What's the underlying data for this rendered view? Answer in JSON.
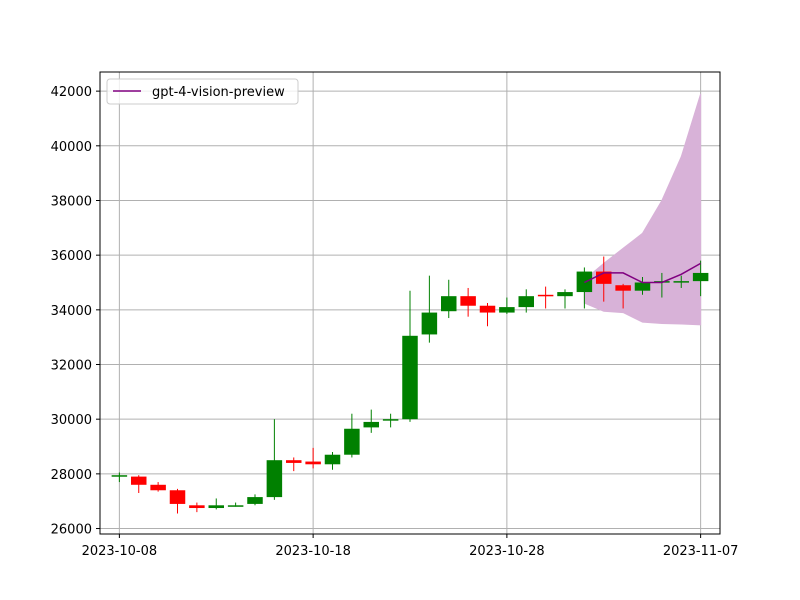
{
  "chart_data": {
    "type": "candlestick",
    "title": "",
    "xlabel": "",
    "ylabel": "",
    "grid": true,
    "legend_position": "top-left",
    "xlim": [
      "2023-10-07",
      "2023-11-08"
    ],
    "ylim": [
      25800,
      42700
    ],
    "x_ticks": [
      "2023-10-08",
      "2023-10-18",
      "2023-10-28",
      "2023-11-07"
    ],
    "y_ticks": [
      26000,
      28000,
      30000,
      32000,
      34000,
      36000,
      38000,
      40000,
      42000
    ],
    "colors": {
      "up": "#008000",
      "down": "#ff0000",
      "prediction_line": "#800080",
      "prediction_band": "#d8b2d8"
    },
    "candles": [
      {
        "date": "2023-10-08",
        "open": 27950,
        "high": 28050,
        "low": 27700,
        "close": 27950
      },
      {
        "date": "2023-10-09",
        "open": 27900,
        "high": 27950,
        "low": 27300,
        "close": 27600
      },
      {
        "date": "2023-10-10",
        "open": 27600,
        "high": 27700,
        "low": 27350,
        "close": 27400
      },
      {
        "date": "2023-10-11",
        "open": 27400,
        "high": 27450,
        "low": 26550,
        "close": 26900
      },
      {
        "date": "2023-10-12",
        "open": 26850,
        "high": 26950,
        "low": 26600,
        "close": 26750
      },
      {
        "date": "2023-10-13",
        "open": 26750,
        "high": 27100,
        "low": 26700,
        "close": 26850
      },
      {
        "date": "2023-10-14",
        "open": 26850,
        "high": 26950,
        "low": 26800,
        "close": 26850
      },
      {
        "date": "2023-10-15",
        "open": 26900,
        "high": 27250,
        "low": 26850,
        "close": 27150
      },
      {
        "date": "2023-10-16",
        "open": 27150,
        "high": 30000,
        "low": 27050,
        "close": 28500
      },
      {
        "date": "2023-10-17",
        "open": 28500,
        "high": 28600,
        "low": 28100,
        "close": 28400
      },
      {
        "date": "2023-10-18",
        "open": 28450,
        "high": 28950,
        "low": 28200,
        "close": 28350
      },
      {
        "date": "2023-10-19",
        "open": 28350,
        "high": 28800,
        "low": 28150,
        "close": 28700
      },
      {
        "date": "2023-10-20",
        "open": 28700,
        "high": 30200,
        "low": 28600,
        "close": 29650
      },
      {
        "date": "2023-10-21",
        "open": 29700,
        "high": 30350,
        "low": 29500,
        "close": 29900
      },
      {
        "date": "2023-10-22",
        "open": 29950,
        "high": 30200,
        "low": 29700,
        "close": 30000
      },
      {
        "date": "2023-10-23",
        "open": 30000,
        "high": 34700,
        "low": 29900,
        "close": 33050
      },
      {
        "date": "2023-10-24",
        "open": 33100,
        "high": 35250,
        "low": 32800,
        "close": 33900
      },
      {
        "date": "2023-10-25",
        "open": 33950,
        "high": 35100,
        "low": 33700,
        "close": 34500
      },
      {
        "date": "2023-10-26",
        "open": 34500,
        "high": 34800,
        "low": 33750,
        "close": 34150
      },
      {
        "date": "2023-10-27",
        "open": 34150,
        "high": 34250,
        "low": 33400,
        "close": 33900
      },
      {
        "date": "2023-10-28",
        "open": 33900,
        "high": 34450,
        "low": 33850,
        "close": 34100
      },
      {
        "date": "2023-10-29",
        "open": 34100,
        "high": 34750,
        "low": 33900,
        "close": 34500
      },
      {
        "date": "2023-10-30",
        "open": 34550,
        "high": 34850,
        "low": 34050,
        "close": 34500
      },
      {
        "date": "2023-10-31",
        "open": 34500,
        "high": 34750,
        "low": 34050,
        "close": 34650
      },
      {
        "date": "2023-11-01",
        "open": 34650,
        "high": 35550,
        "low": 34050,
        "close": 35400
      },
      {
        "date": "2023-11-02",
        "open": 35400,
        "high": 35950,
        "low": 34300,
        "close": 34950
      },
      {
        "date": "2023-11-03",
        "open": 34900,
        "high": 34950,
        "low": 34050,
        "close": 34700
      },
      {
        "date": "2023-11-04",
        "open": 34700,
        "high": 35200,
        "low": 34550,
        "close": 35000
      },
      {
        "date": "2023-11-05",
        "open": 35050,
        "high": 35350,
        "low": 34450,
        "close": 35050
      },
      {
        "date": "2023-11-06",
        "open": 35050,
        "high": 35250,
        "low": 34800,
        "close": 35050
      },
      {
        "date": "2023-11-07",
        "open": 35050,
        "high": 35800,
        "low": 34500,
        "close": 35350
      }
    ],
    "series": [
      {
        "name": "gpt-4-vision-preview",
        "x": [
          "2023-11-01",
          "2023-11-02",
          "2023-11-03",
          "2023-11-04",
          "2023-11-05",
          "2023-11-06",
          "2023-11-07"
        ],
        "values": [
          35000,
          35350,
          35350,
          35000,
          35000,
          35300,
          35700
        ],
        "lower": [
          34250,
          33950,
          33900,
          33550,
          33500,
          33480,
          33450
        ],
        "upper": [
          35100,
          35700,
          36250,
          36800,
          38000,
          39600,
          41900
        ]
      }
    ]
  }
}
